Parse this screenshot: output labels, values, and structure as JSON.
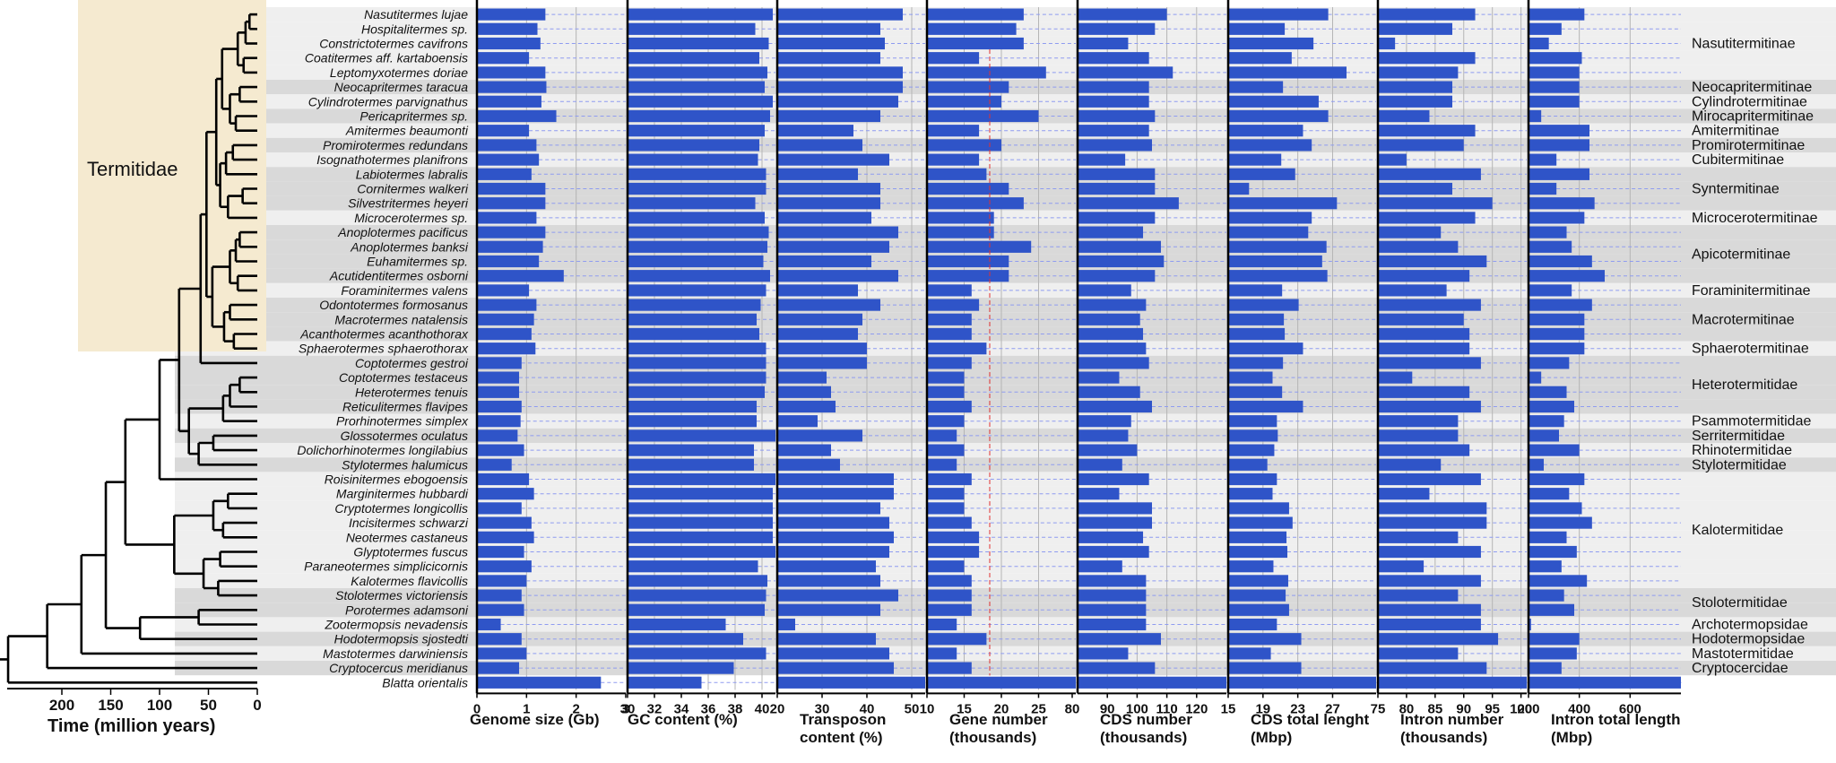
{
  "chart_data": {
    "type": "bar",
    "figure": "Phylogeny of termites with genome statistics",
    "clade_label": "Termitidae",
    "x_axis_tree": {
      "label": "Time (million years)",
      "ticks": [
        "200",
        "150",
        "100",
        "50",
        "0"
      ]
    },
    "species": [
      "Nasutitermes lujae",
      "Hospitalitermes sp.",
      "Constrictotermes cavifrons",
      "Coatitermes aff. kartaboensis",
      "Leptomyxotermes doriae",
      "Neocapritermes taracua",
      "Cylindrotermes parvignathus",
      "Pericapritermes sp.",
      "Amitermes beaumonti",
      "Promirotermes redundans",
      "Isognathotermes planifrons",
      "Labiotermes labralis",
      "Cornitermes walkeri",
      "Silvestritermes heyeri",
      "Microcerotermes sp.",
      "Anoplotermes pacificus",
      "Anoplotermes banksi",
      "Euhamitermes sp.",
      "Acutidentitermes osborni",
      "Foraminitermes valens",
      "Odontotermes formosanus",
      "Macrotermes natalensis",
      "Acanthotermes acanthothorax",
      "Sphaerotermes sphaerothorax",
      "Coptotermes gestroi",
      "Coptotermes testaceus",
      "Heterotermes tenuis",
      "Reticulitermes flavipes",
      "Prorhinotermes simplex",
      "Glossotermes oculatus",
      "Dolichorhinotermes longilabius",
      "Stylotermes halumicus",
      "Roisinitermes ebogoensis",
      "Marginitermes hubbardi",
      "Cryptotermes longicollis",
      "Incisitermes schwarzi",
      "Neotermes castaneus",
      "Glyptotermes fuscus",
      "Paraneotermes simplicicornis",
      "Kalotermes flavicollis",
      "Stolotermes victoriensis",
      "Porotermes adamsoni",
      "Zootermopsis nevadensis",
      "Hodotermopsis sjostedti",
      "Mastotermes darwiniensis",
      "Cryptocercus meridianus",
      "Blatta orientalis"
    ],
    "families": [
      {
        "name": "Nasutitermitinae"
      },
      {
        "name": "Neocapritermitinae"
      },
      {
        "name": "Cylindrotermitinae"
      },
      {
        "name": "Mirocapritermitinae"
      },
      {
        "name": "Amitermitinae"
      },
      {
        "name": "Promirotermitinae"
      },
      {
        "name": "Cubitermitinae"
      },
      {
        "name": "Syntermitinae"
      },
      {
        "name": "Microcerotermitinae"
      },
      {
        "name": "Apicotermitinae"
      },
      {
        "name": "Foraminitermitinae"
      },
      {
        "name": "Macrotermitinae"
      },
      {
        "name": "Sphaerotermitinae"
      },
      {
        "name": "Heterotermitidae"
      },
      {
        "name": "Psammotermitidae"
      },
      {
        "name": "Serritermitidae"
      },
      {
        "name": "Rhinotermitidae"
      },
      {
        "name": "Stylotermitidae"
      },
      {
        "name": "Kalotermitidae"
      },
      {
        "name": "Stolotermitidae"
      },
      {
        "name": "Archotermopsidae"
      },
      {
        "name": "Hodotermopsidae"
      },
      {
        "name": "Mastotermitidae"
      },
      {
        "name": "Cryptocercidae"
      }
    ],
    "panels": [
      {
        "title": [
          "Genome size (Gb)"
        ],
        "ticks": [
          "0",
          "1",
          "2",
          "3"
        ],
        "xlim": [
          0,
          3
        ],
        "values": [
          1.38,
          1.22,
          1.28,
          1.05,
          1.38,
          1.4,
          1.3,
          1.6,
          1.05,
          1.2,
          1.25,
          1.1,
          1.38,
          1.38,
          1.2,
          1.38,
          1.33,
          1.25,
          1.75,
          1.05,
          1.2,
          1.15,
          1.1,
          1.18,
          0.9,
          0.85,
          0.85,
          0.9,
          0.88,
          0.82,
          0.95,
          0.7,
          1.05,
          1.15,
          0.9,
          1.1,
          1.15,
          0.95,
          1.1,
          1.0,
          0.9,
          0.95,
          0.48,
          0.9,
          1.0,
          0.85,
          2.5
        ]
      },
      {
        "title": [
          "GC content (%)"
        ],
        "ticks": [
          "30",
          "32",
          "34",
          "36",
          "38",
          "40"
        ],
        "xlim": [
          30,
          41
        ],
        "values": [
          40.8,
          39.5,
          40.5,
          39.8,
          40.4,
          40.2,
          40.8,
          40.6,
          40.2,
          39.8,
          39.7,
          40.3,
          40.3,
          39.5,
          40.2,
          40.5,
          40.4,
          40.1,
          40.6,
          40.3,
          39.9,
          39.6,
          39.8,
          40.3,
          40.3,
          40.3,
          40.2,
          39.6,
          39.6,
          41.0,
          39.4,
          39.4,
          41.0,
          40.8,
          40.8,
          40.8,
          40.8,
          41.0,
          39.7,
          40.4,
          40.3,
          40.2,
          37.3,
          38.6,
          40.3,
          37.9,
          35.5
        ]
      },
      {
        "title": [
          "Transposon",
          "content (%)"
        ],
        "ticks": [
          "20",
          "30",
          "40",
          "50"
        ],
        "xlim": [
          20,
          53
        ],
        "values": [
          48,
          43,
          44,
          43,
          48,
          48,
          47,
          43,
          37,
          39,
          45,
          38,
          43,
          43,
          41,
          47,
          45,
          41,
          47,
          38,
          43,
          39,
          38,
          40,
          40,
          31,
          32,
          33,
          29,
          39,
          32,
          34,
          46,
          46,
          43,
          45,
          46,
          45,
          42,
          43,
          47,
          43,
          24,
          42,
          45,
          46,
          53
        ]
      },
      {
        "title": [
          "Gene number",
          "(thousands)"
        ],
        "ticks": [
          "10",
          "15",
          "20",
          "25",
          "80"
        ],
        "xlim": [
          10,
          30
        ],
        "values": [
          23,
          22,
          23,
          17,
          26,
          21,
          20,
          25,
          17,
          20,
          17,
          18,
          21,
          23,
          19,
          19,
          24,
          21,
          21,
          16,
          17,
          16,
          16,
          18,
          16,
          15,
          15,
          16,
          15,
          14,
          15,
          14,
          16,
          15,
          15,
          16,
          17,
          17,
          15,
          16,
          16,
          16,
          14,
          18,
          14,
          16,
          30
        ]
      },
      {
        "title": [
          "CDS number",
          "(thousands)"
        ],
        "ticks": [
          "90",
          "100",
          "110",
          "120"
        ],
        "xlim": [
          80,
          130
        ],
        "values": [
          110,
          106,
          97,
          104,
          112,
          104,
          104,
          106,
          104,
          105,
          96,
          106,
          106,
          114,
          106,
          102,
          108,
          109,
          106,
          98,
          103,
          101,
          102,
          103,
          104,
          94,
          101,
          105,
          98,
          97,
          100,
          95,
          104,
          94,
          105,
          105,
          102,
          104,
          95,
          103,
          103,
          103,
          103,
          108,
          97,
          106,
          130
        ]
      },
      {
        "title": [
          "CDS total lenght",
          "(Mbp)"
        ],
        "ticks": [
          "15",
          "19",
          "23",
          "27"
        ],
        "xlim": [
          15,
          32
        ],
        "values": [
          26.5,
          21.5,
          24.8,
          22.3,
          28.6,
          21.3,
          25.4,
          26.5,
          23.6,
          24.6,
          21.1,
          22.7,
          17.4,
          27.5,
          24.6,
          24.2,
          26.3,
          25.8,
          26.4,
          21.2,
          23.1,
          21.4,
          21.5,
          23.6,
          21.3,
          20.1,
          21.2,
          23.6,
          20.6,
          20.7,
          20.3,
          19.5,
          20.6,
          20.1,
          22.0,
          22.4,
          21.7,
          21.8,
          20.2,
          21.9,
          21.6,
          22.0,
          20.6,
          23.4,
          19.9,
          23.4,
          32.0
        ]
      },
      {
        "title": [
          "Intron number",
          "(thousands)"
        ],
        "ticks": [
          "75",
          "80",
          "85",
          "90",
          "95",
          "100"
        ],
        "xlim": [
          75,
          101
        ],
        "values": [
          92,
          88,
          78,
          92,
          89,
          88,
          88,
          84,
          92,
          90,
          80,
          93,
          88,
          95,
          92,
          86,
          89,
          94,
          91,
          87,
          93,
          90,
          91,
          91,
          93,
          81,
          91,
          93,
          89,
          89,
          91,
          86,
          93,
          84,
          94,
          94,
          89,
          93,
          83,
          93,
          89,
          93,
          93,
          96,
          89,
          94,
          101
        ]
      },
      {
        "title": [
          "Intron total length",
          "(Mbp)"
        ],
        "ticks": [
          "200",
          "400",
          "600"
        ],
        "xlim": [
          200,
          800
        ],
        "values": [
          420,
          330,
          280,
          410,
          400,
          400,
          400,
          250,
          440,
          440,
          310,
          440,
          310,
          460,
          420,
          350,
          370,
          450,
          500,
          370,
          450,
          420,
          420,
          420,
          360,
          250,
          350,
          380,
          340,
          320,
          400,
          260,
          420,
          360,
          410,
          450,
          350,
          390,
          330,
          430,
          340,
          380,
          210,
          400,
          390,
          330,
          800
        ]
      }
    ]
  }
}
